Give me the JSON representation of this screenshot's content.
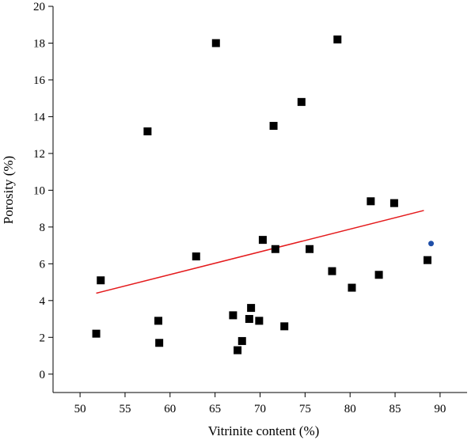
{
  "chart_data": {
    "type": "scatter",
    "title": "",
    "xlabel": "Vitrinite content (%)",
    "ylabel": "Porosity (%)",
    "xlim": [
      47,
      93
    ],
    "ylim": [
      -1,
      20
    ],
    "xticks": [
      50,
      55,
      60,
      65,
      70,
      75,
      80,
      85,
      90
    ],
    "yticks": [
      0,
      2,
      4,
      6,
      8,
      10,
      12,
      14,
      16,
      18,
      20
    ],
    "grid": false,
    "series": [
      {
        "marker": "square",
        "color": "#000000",
        "points": [
          {
            "x": 51.8,
            "y": 2.2
          },
          {
            "x": 52.3,
            "y": 5.1
          },
          {
            "x": 57.5,
            "y": 13.2
          },
          {
            "x": 58.7,
            "y": 2.9
          },
          {
            "x": 58.8,
            "y": 1.7
          },
          {
            "x": 62.9,
            "y": 6.4
          },
          {
            "x": 65.1,
            "y": 18.0
          },
          {
            "x": 67.0,
            "y": 3.2
          },
          {
            "x": 67.5,
            "y": 1.3
          },
          {
            "x": 68.0,
            "y": 1.8
          },
          {
            "x": 68.8,
            "y": 3.0
          },
          {
            "x": 69.0,
            "y": 3.6
          },
          {
            "x": 69.9,
            "y": 2.9
          },
          {
            "x": 70.3,
            "y": 7.3
          },
          {
            "x": 71.5,
            "y": 13.5
          },
          {
            "x": 71.7,
            "y": 6.8
          },
          {
            "x": 72.7,
            "y": 2.6
          },
          {
            "x": 74.6,
            "y": 14.8
          },
          {
            "x": 75.5,
            "y": 6.8
          },
          {
            "x": 78.0,
            "y": 5.6
          },
          {
            "x": 78.6,
            "y": 18.2
          },
          {
            "x": 80.2,
            "y": 4.7
          },
          {
            "x": 82.3,
            "y": 9.4
          },
          {
            "x": 83.2,
            "y": 5.4
          },
          {
            "x": 84.9,
            "y": 9.3
          },
          {
            "x": 88.6,
            "y": 6.2
          }
        ]
      },
      {
        "marker": "circle",
        "color": "#1f4fa8",
        "points": [
          {
            "x": 89.0,
            "y": 7.1
          }
        ]
      }
    ],
    "trendline": {
      "color": "#e41a1c",
      "x": [
        51.8,
        88.2
      ],
      "y": [
        4.4,
        8.9
      ]
    }
  }
}
